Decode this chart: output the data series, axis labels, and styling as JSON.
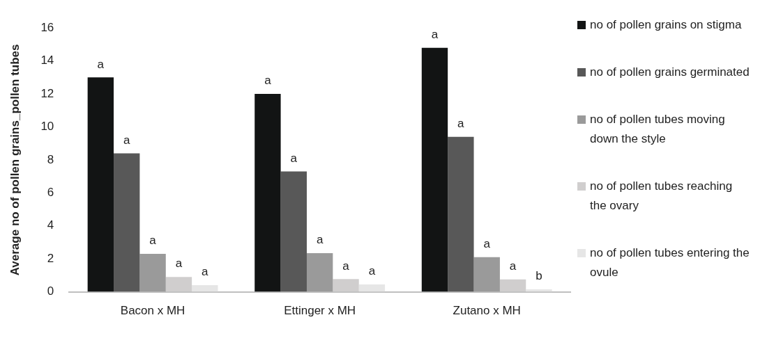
{
  "chart_data": {
    "type": "bar",
    "ylabel": "Average no of pollen grains_pollen tubes",
    "categories": [
      "Bacon x MH",
      "Ettinger x MH",
      "Zutano x MH"
    ],
    "series": [
      {
        "name": "no of pollen grains on stigma",
        "color": "#121414",
        "values": [
          13.0,
          12.0,
          14.8
        ],
        "value_labels": [
          "a",
          "a",
          "a"
        ]
      },
      {
        "name": "no of pollen grains germinated",
        "color": "#585858",
        "values": [
          8.4,
          7.3,
          9.4
        ],
        "value_labels": [
          "a",
          "a",
          "a"
        ]
      },
      {
        "name": "no of pollen tubes moving down the style",
        "color": "#9a9a9a",
        "values": [
          2.3,
          2.35,
          2.1
        ],
        "value_labels": [
          "a",
          "a",
          "a"
        ]
      },
      {
        "name": "no of pollen tubes reaching the ovary",
        "color": "#d0cece",
        "values": [
          0.9,
          0.77,
          0.75
        ],
        "value_labels": [
          "a",
          "a",
          "a"
        ]
      },
      {
        "name": "no of pollen tubes entering the ovule",
        "color": "#e6e6e6",
        "values": [
          0.4,
          0.45,
          0.15
        ],
        "value_labels": [
          "a",
          "a",
          "b"
        ]
      }
    ],
    "ylim": [
      0,
      16
    ],
    "yticks": [
      0,
      2,
      4,
      6,
      8,
      10,
      12,
      14,
      16
    ],
    "grid": false,
    "legend": "right"
  }
}
